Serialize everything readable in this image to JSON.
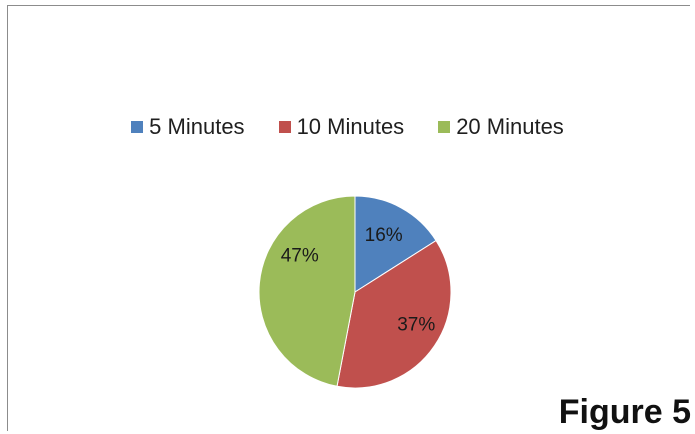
{
  "chart_data": {
    "type": "pie",
    "categories": [
      "5 Minutes",
      "10 Minutes",
      "20 Minutes"
    ],
    "values": [
      16,
      37,
      47
    ],
    "labels": [
      "16%",
      "37%",
      "47%"
    ],
    "colors": [
      "#4f81bd",
      "#c0504d",
      "#9bbb59"
    ],
    "legend_position": "top"
  },
  "figure_label": "Figure 5"
}
